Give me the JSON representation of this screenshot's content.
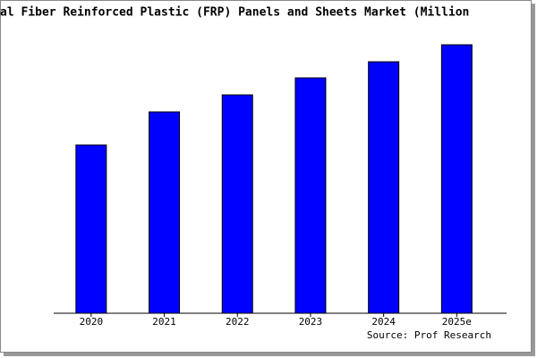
{
  "chart_data": {
    "type": "bar",
    "title": "al Fiber Reinforced Plastic (FRP) Panels and Sheets Market (Million",
    "categories": [
      "2020",
      "2021",
      "2022",
      "2023",
      "2024",
      "2025e"
    ],
    "values": [
      188,
      225,
      244,
      263,
      281,
      300
    ],
    "color": "#0000ff",
    "source": "Source: Prof Research"
  }
}
